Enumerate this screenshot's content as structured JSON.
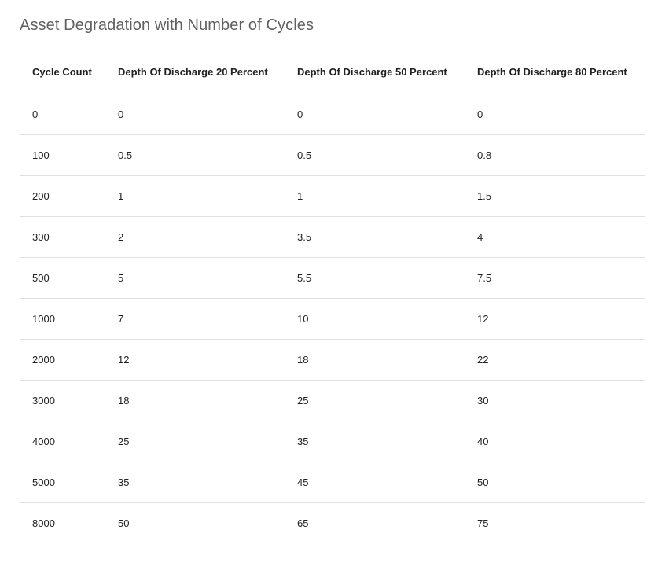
{
  "title": "Asset Degradation with Number of Cycles",
  "chart_data": {
    "type": "table",
    "title": "Asset Degradation with Number of Cycles",
    "columns": [
      "Cycle Count",
      "Depth Of Discharge 20 Percent",
      "Depth Of Discharge 50 Percent",
      "Depth Of Discharge 80 Percent"
    ],
    "rows": [
      [
        "0",
        "0",
        "0",
        "0"
      ],
      [
        "100",
        "0.5",
        "0.5",
        "0.8"
      ],
      [
        "200",
        "1",
        "1",
        "1.5"
      ],
      [
        "300",
        "2",
        "3.5",
        "4"
      ],
      [
        "500",
        "5",
        "5.5",
        "7.5"
      ],
      [
        "1000",
        "7",
        "10",
        "12"
      ],
      [
        "2000",
        "12",
        "18",
        "22"
      ],
      [
        "3000",
        "18",
        "25",
        "30"
      ],
      [
        "4000",
        "25",
        "35",
        "40"
      ],
      [
        "5000",
        "35",
        "45",
        "50"
      ],
      [
        "8000",
        "50",
        "65",
        "75"
      ]
    ]
  }
}
